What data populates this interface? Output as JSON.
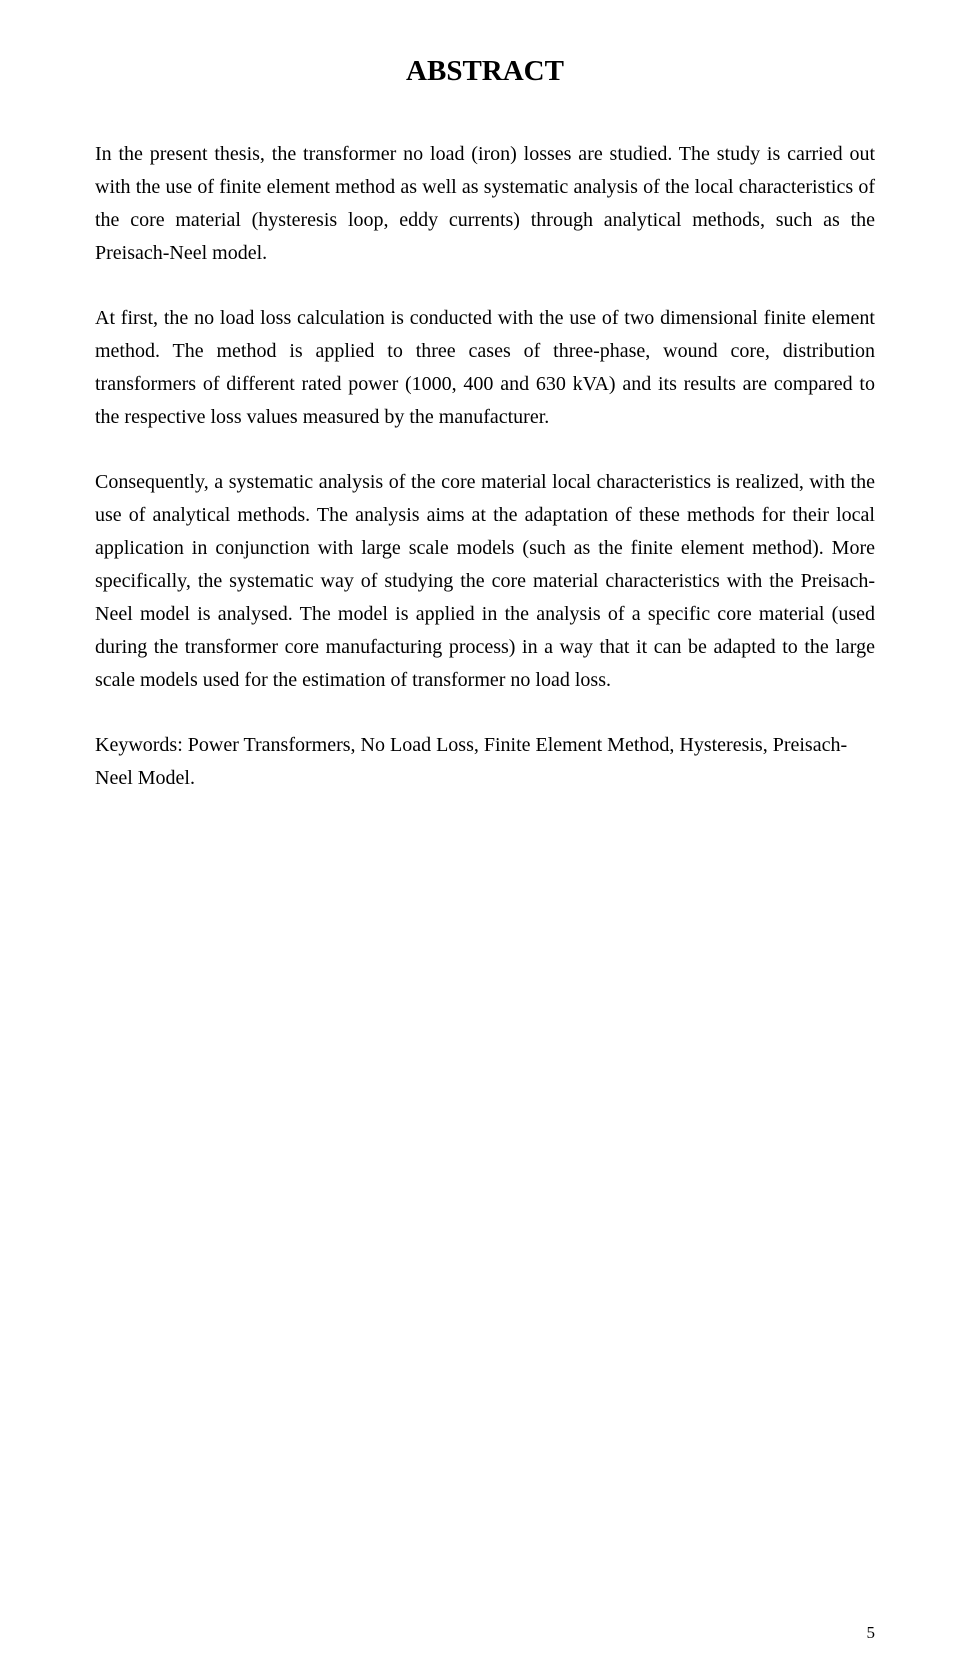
{
  "title": "ABSTRACT",
  "paragraphs": {
    "p1": "In the present thesis, the transformer no load (iron) losses are studied. The study is carried out with the use of finite element method as well as systematic analysis of the local characteristics of the core material (hysteresis loop, eddy currents) through analytical methods, such as the Preisach-Neel model.",
    "p2": "At first, the no load loss calculation is conducted with the use of two dimensional finite element method. The method is applied to three cases of three-phase, wound core, distribution transformers of different rated power (1000, 400 and 630 kVA) and its results are compared to the respective loss values measured by the manufacturer.",
    "p3": "Consequently, a systematic analysis of the core material local characteristics is realized, with the use of analytical methods. The analysis aims at the adaptation of these methods for their local application in conjunction with large scale models (such as the finite element method). More specifically, the systematic way of studying the core material characteristics with the Preisach-Neel model is analysed. The model is applied in the analysis of a specific core material (used during the transformer core manufacturing process) in a way that it can be adapted to the large scale models used for the estimation of transformer no load loss."
  },
  "keywords": "Keywords:  Power Transformers, No Load Loss, Finite Element Method, Hysteresis, Preisach-Neel Model.",
  "pageNumber": "5"
}
